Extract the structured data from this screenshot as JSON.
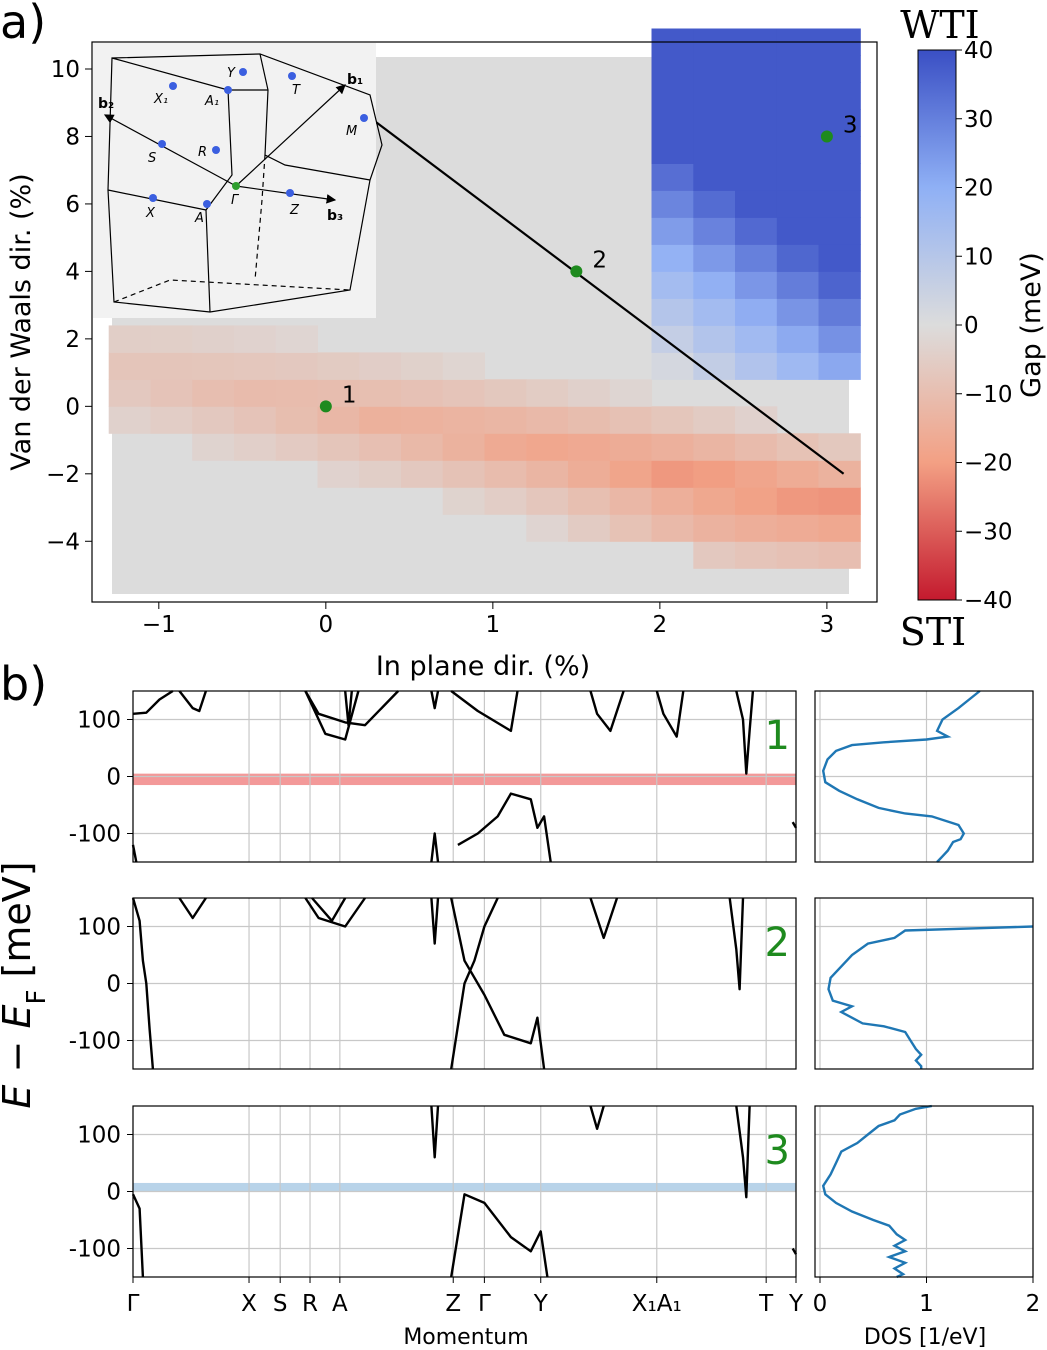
{
  "panel_labels": {
    "a": "a)",
    "b": "b)"
  },
  "colorbar": {
    "label": "Gap (meV)",
    "top_label": "WTI",
    "bottom_label": "STI",
    "ticks": [
      "40",
      "30",
      "20",
      "10",
      "0",
      "−10",
      "−20",
      "−30",
      "−40"
    ],
    "colors": {
      "positive": "#3b5fcf",
      "zero": "#dcdcdc",
      "negative": "#c81d2b"
    }
  },
  "bz_inset": {
    "points": [
      "Y",
      "X₁",
      "A₁",
      "T",
      "M",
      "S",
      "R",
      "Γ",
      "X",
      "A",
      "Z"
    ],
    "vectors": [
      "b₁",
      "b₂",
      "b₃"
    ]
  },
  "chart_data": [
    {
      "type": "heatmap",
      "panel": "a",
      "title": "",
      "xlabel": "In plane dir. (%)",
      "ylabel": "Van der Waals dir. (%)",
      "xlim": [
        -1.4,
        3.3
      ],
      "ylim": [
        -5.8,
        10.8
      ],
      "xticks": [
        "−1",
        "0",
        "1",
        "2",
        "3"
      ],
      "yticks": [
        "10",
        "8",
        "6",
        "4",
        "2",
        "0",
        "−2",
        "−4"
      ],
      "value_range": [
        -40,
        40
      ],
      "cell_x_step": 0.25,
      "cell_y_step": 0.8,
      "points": [
        {
          "label": "1",
          "x": 0,
          "y": 0
        },
        {
          "label": "2",
          "x": 1.5,
          "y": 4
        },
        {
          "label": "3",
          "x": 3,
          "y": 8
        }
      ],
      "path_line": {
        "from": [
          0.2,
          8.8
        ],
        "to": [
          3.1,
          -2.0
        ]
      }
    },
    {
      "type": "line",
      "panel": "b",
      "xlabel": "Momentum",
      "ylabel": "E − E_F [meV]",
      "ylabel_parts": {
        "E": "E",
        "minus": " − ",
        "EF": "E",
        "sub": "F",
        "unit": " [meV]"
      },
      "ylim": [
        -150,
        150
      ],
      "yticks": [
        "100",
        "0",
        "-100"
      ],
      "kpath": [
        "Γ",
        "X",
        "S",
        "R",
        "A",
        "Z",
        "Γ",
        "Y",
        "X₁A₁",
        "T",
        "Y"
      ],
      "gaps": [
        {
          "panel": "1",
          "range": [
            -15,
            5
          ],
          "color": "#f08080"
        },
        {
          "panel": "2",
          "range": null
        },
        {
          "panel": "3",
          "range": [
            0,
            15
          ],
          "color": "#a6c8e4"
        }
      ]
    },
    {
      "type": "line",
      "panel": "b-dos",
      "xlabel": "DOS [1/eV]",
      "xlim": [
        0,
        2
      ],
      "xticks": [
        "0",
        "1",
        "2"
      ],
      "series": [
        {
          "name": "1",
          "dos_vs_energy": [
            [
              1.5,
              150
            ],
            [
              1.3,
              120
            ],
            [
              1.15,
              100
            ],
            [
              1.1,
              80
            ],
            [
              1.2,
              70
            ],
            [
              1.0,
              65
            ],
            [
              0.6,
              60
            ],
            [
              0.3,
              55
            ],
            [
              0.15,
              45
            ],
            [
              0.07,
              30
            ],
            [
              0.03,
              10
            ],
            [
              0.05,
              -10
            ],
            [
              0.18,
              -25
            ],
            [
              0.35,
              -40
            ],
            [
              0.55,
              -55
            ],
            [
              0.8,
              -65
            ],
            [
              1.05,
              -70
            ],
            [
              1.3,
              -85
            ],
            [
              1.35,
              -100
            ],
            [
              1.32,
              -110
            ],
            [
              1.25,
              -115
            ],
            [
              1.2,
              -130
            ],
            [
              1.15,
              -140
            ],
            [
              1.1,
              -150
            ]
          ]
        },
        {
          "name": "2",
          "dos_vs_energy": [
            [
              2.0,
              100
            ],
            [
              1.5,
              97
            ],
            [
              0.8,
              93
            ],
            [
              0.7,
              80
            ],
            [
              0.45,
              70
            ],
            [
              0.3,
              50
            ],
            [
              0.2,
              30
            ],
            [
              0.1,
              10
            ],
            [
              0.08,
              -10
            ],
            [
              0.12,
              -30
            ],
            [
              0.3,
              -40
            ],
            [
              0.2,
              -50
            ],
            [
              0.4,
              -70
            ],
            [
              0.6,
              -75
            ],
            [
              0.8,
              -85
            ],
            [
              0.85,
              -100
            ],
            [
              0.9,
              -115
            ],
            [
              0.95,
              -125
            ],
            [
              0.9,
              -135
            ],
            [
              0.95,
              -145
            ],
            [
              0.95,
              -150
            ]
          ]
        },
        {
          "name": "3",
          "dos_vs_energy": [
            [
              1.05,
              150
            ],
            [
              0.9,
              145
            ],
            [
              0.75,
              135
            ],
            [
              0.7,
              125
            ],
            [
              0.55,
              115
            ],
            [
              0.45,
              100
            ],
            [
              0.35,
              85
            ],
            [
              0.2,
              70
            ],
            [
              0.15,
              50
            ],
            [
              0.1,
              30
            ],
            [
              0.03,
              10
            ],
            [
              0.05,
              -5
            ],
            [
              0.15,
              -20
            ],
            [
              0.3,
              -35
            ],
            [
              0.5,
              -50
            ],
            [
              0.65,
              -60
            ],
            [
              0.72,
              -75
            ],
            [
              0.8,
              -85
            ],
            [
              0.7,
              -95
            ],
            [
              0.8,
              -105
            ],
            [
              0.65,
              -115
            ],
            [
              0.8,
              -125
            ],
            [
              0.7,
              -135
            ],
            [
              0.78,
              -145
            ],
            [
              0.72,
              -150
            ]
          ]
        }
      ]
    }
  ]
}
